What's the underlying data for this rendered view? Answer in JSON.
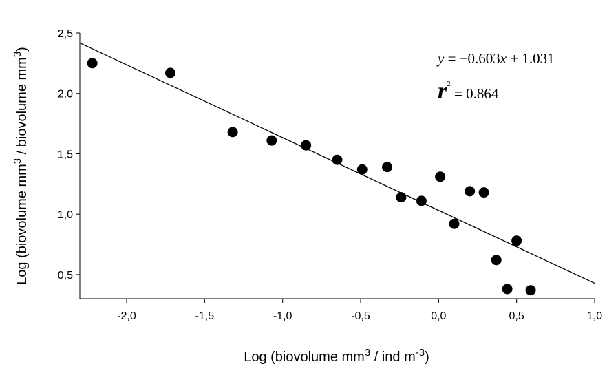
{
  "chart_data": {
    "type": "scatter",
    "title": "",
    "xlabel": {
      "pre": "Log (biovolume mm",
      "sup1": "3",
      "mid": " / ind m",
      "sup2": "-3",
      "post": ")"
    },
    "ylabel": {
      "pre": "Log (biovolume mm",
      "sup1": "3",
      "mid": " /   biovolume mm",
      "sup2": "3",
      "post": ")"
    },
    "xlim": [
      -2.3,
      1.0
    ],
    "ylim": [
      0.3,
      2.5
    ],
    "x_ticks": [
      -2.0,
      -1.5,
      -1.0,
      -0.5,
      0.0,
      0.5,
      1.0
    ],
    "x_tick_labels": [
      "-2,0",
      "-1,5",
      "-1,0",
      "-0,5",
      "0,0",
      "0,5",
      "1,0"
    ],
    "y_ticks": [
      0.5,
      1.0,
      1.5,
      2.0,
      2.5
    ],
    "y_tick_labels": [
      "0,5",
      "1,0",
      "1,5",
      "2,0",
      "2,5"
    ],
    "grid": false,
    "points": {
      "x": [
        -2.22,
        -1.72,
        -1.32,
        -1.07,
        -0.85,
        -0.65,
        -0.49,
        -0.33,
        -0.24,
        -0.11,
        0.01,
        0.1,
        0.2,
        0.29,
        0.37,
        0.44,
        0.5,
        0.59
      ],
      "y": [
        2.25,
        2.17,
        1.68,
        1.61,
        1.57,
        1.45,
        1.37,
        1.39,
        1.14,
        1.11,
        1.31,
        0.92,
        1.19,
        1.18,
        0.62,
        0.38,
        0.78,
        0.37
      ]
    },
    "regression": {
      "slope": -0.603,
      "intercept": 1.031
    },
    "annotations": {
      "equation": {
        "y": "y",
        "eq": " = −0.603",
        "x": "x",
        "rest": " + 1.031"
      },
      "r2": {
        "r": "r",
        "exp": "2",
        "val": " = 0.864"
      }
    },
    "colors": {
      "points": "#000000",
      "line": "#000000"
    }
  }
}
